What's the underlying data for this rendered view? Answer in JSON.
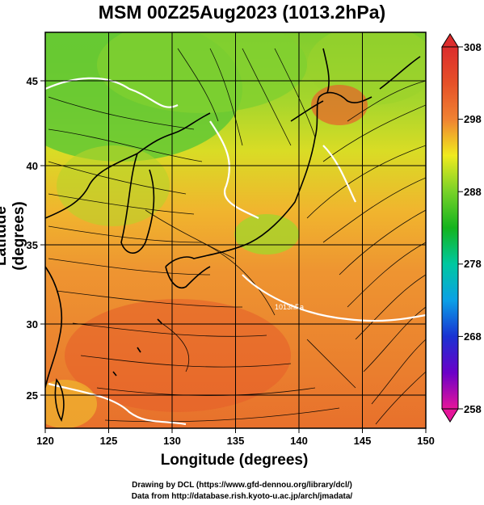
{
  "title": "MSM 00Z25Aug2023 (1013.2hPa)",
  "axes": {
    "xlabel": "Longitude (degrees)",
    "ylabel": "Latitude  (degrees)",
    "x_ticks": [
      "120",
      "125",
      "130",
      "135",
      "140",
      "145",
      "150"
    ],
    "y_ticks": [
      "25",
      "30",
      "35",
      "40",
      "45"
    ],
    "x_range": [
      120,
      150
    ],
    "y_range": [
      22.4,
      47.6
    ]
  },
  "colorbar": {
    "labels": [
      "308",
      "298",
      "288",
      "278",
      "268",
      "258"
    ],
    "min": 258,
    "max": 308,
    "colors": [
      "#e6159a",
      "#6b00c8",
      "#1a32d2",
      "#0aa0e6",
      "#00c8a0",
      "#14b41e",
      "#78d228",
      "#f0eb1e",
      "#f5b428",
      "#f08232",
      "#e65028",
      "#dc2d2d"
    ]
  },
  "isotherm_label": "1013hPa",
  "credits": {
    "line1": "Drawing by DCL (https://www.gfd-dennou.org/library/dcl/)",
    "line2": "Data from http://database.rish.kyoto-u.ac.jp/arch/jmadata/"
  }
}
